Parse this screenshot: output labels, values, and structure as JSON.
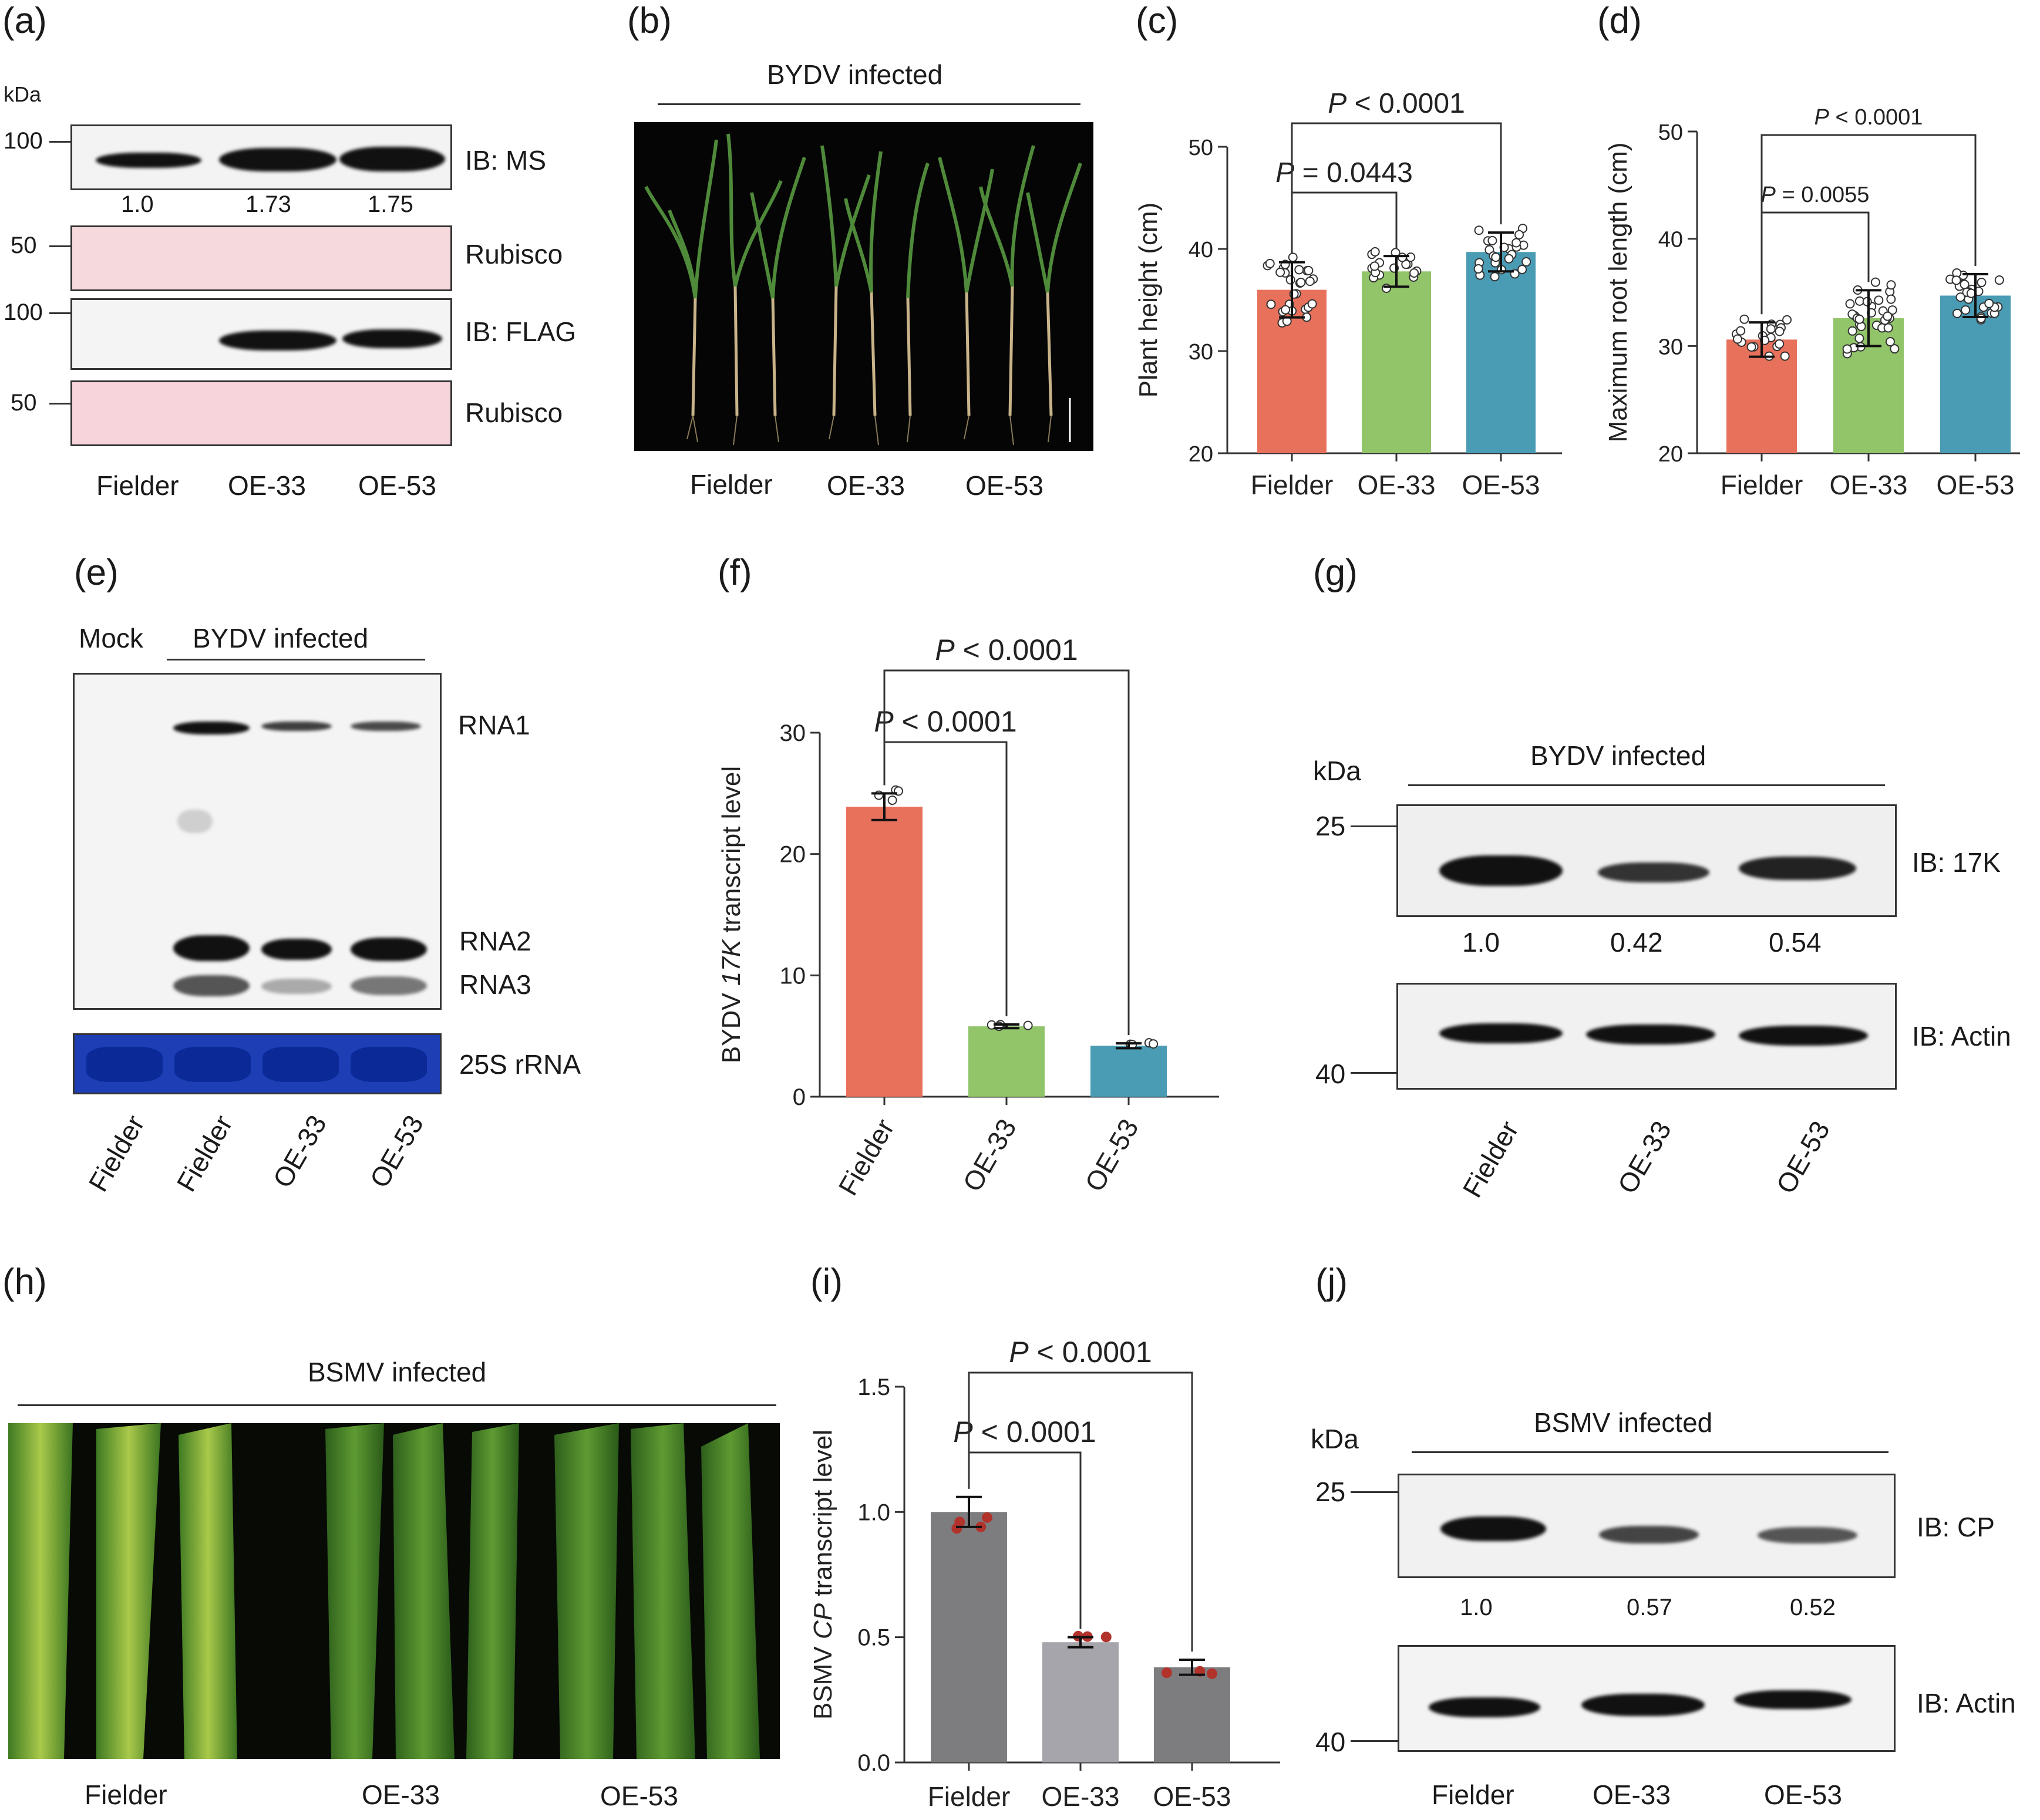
{
  "panels": {
    "a": {
      "label": "(a)",
      "unit": "kDa",
      "markers": [
        "100",
        "50",
        "100",
        "50"
      ],
      "blots": [
        "IB: MS",
        "Rubisco",
        "IB: FLAG",
        "Rubisco"
      ],
      "quant": [
        "1.0",
        "1.73",
        "1.75"
      ],
      "lanes": [
        "Fielder",
        "OE-33",
        "OE-53"
      ]
    },
    "b": {
      "label": "(b)",
      "header": "BYDV infected",
      "lanes": [
        "Fielder",
        "OE-33",
        "OE-53"
      ]
    },
    "e": {
      "label": "(e)",
      "mock": "Mock",
      "header": "BYDV infected",
      "bands": [
        "RNA1",
        "RNA2",
        "RNA3"
      ],
      "stain": "25S rRNA",
      "lanes": [
        "Fielder",
        "Fielder",
        "OE-33",
        "OE-53"
      ]
    },
    "g": {
      "label": "(g)",
      "unit": "kDa",
      "header": "BYDV infected",
      "markers": [
        "25",
        "40"
      ],
      "blots": [
        "IB: 17K",
        "IB: Actin"
      ],
      "quant": [
        "1.0",
        "0.42",
        "0.54"
      ],
      "lanes": [
        "Fielder",
        "OE-33",
        "OE-53"
      ]
    },
    "h": {
      "label": "(h)",
      "header": "BSMV infected",
      "lanes": [
        "Fielder",
        "OE-33",
        "OE-53"
      ]
    },
    "j": {
      "label": "(j)",
      "unit": "kDa",
      "header": "BSMV infected",
      "markers": [
        "25",
        "40"
      ],
      "blots": [
        "IB: CP",
        "IB: Actin"
      ],
      "quant": [
        "1.0",
        "0.57",
        "0.52"
      ],
      "lanes": [
        "Fielder",
        "OE-33",
        "OE-53"
      ]
    }
  },
  "chart_data": [
    {
      "panel": "(c)",
      "type": "bar",
      "categories": [
        "Fielder",
        "OE-33",
        "OE-53"
      ],
      "values": [
        36.0,
        37.8,
        39.7
      ],
      "errors": [
        2.7,
        1.5,
        1.9
      ],
      "ylabel": "Plant height (cm)",
      "ylim": [
        20,
        50
      ],
      "yticks": [
        "20",
        "30",
        "40",
        "50"
      ],
      "colors": [
        "#e8715c",
        "#92c46a",
        "#4a9bb4"
      ],
      "comparisons": [
        {
          "from": 0,
          "to": 1,
          "label": "= 0.0443"
        },
        {
          "from": 0,
          "to": 2,
          "label": "< 0.0001"
        }
      ]
    },
    {
      "panel": "(d)",
      "type": "bar",
      "categories": [
        "Fielder",
        "OE-33",
        "OE-53"
      ],
      "values": [
        30.6,
        32.6,
        34.7
      ],
      "errors": [
        1.6,
        2.6,
        2.0
      ],
      "ylabel": "Maximum root length (cm)",
      "ylim": [
        20,
        50
      ],
      "yticks": [
        "20",
        "30",
        "40",
        "50"
      ],
      "colors": [
        "#e8715c",
        "#92c46a",
        "#4a9bb4"
      ],
      "comparisons": [
        {
          "from": 0,
          "to": 1,
          "label": "= 0.0055"
        },
        {
          "from": 0,
          "to": 2,
          "label": "< 0.0001"
        }
      ]
    },
    {
      "panel": "(f)",
      "type": "bar",
      "categories": [
        "Fielder",
        "OE-33",
        "OE-53"
      ],
      "values": [
        23.9,
        5.8,
        4.2
      ],
      "errors": [
        1.1,
        0.15,
        0.2
      ],
      "ylabel_parts": [
        "BYDV ",
        "17K",
        " transcript level"
      ],
      "ylim": [
        0,
        30
      ],
      "yticks": [
        "0",
        "10",
        "20",
        "30"
      ],
      "colors": [
        "#e8715c",
        "#92c46a",
        "#4a9bb4"
      ],
      "comparisons": [
        {
          "from": 0,
          "to": 1,
          "label": "< 0.0001"
        },
        {
          "from": 0,
          "to": 2,
          "label": "< 0.0001"
        }
      ]
    },
    {
      "panel": "(i)",
      "type": "bar",
      "categories": [
        "Fielder",
        "OE-33",
        "OE-53"
      ],
      "values": [
        1.0,
        0.48,
        0.38
      ],
      "errors": [
        0.06,
        0.02,
        0.03
      ],
      "ylabel_parts": [
        "BSMV ",
        "CP",
        " transcript level"
      ],
      "ylim": [
        0,
        1.5
      ],
      "yticks": [
        "0.0",
        "0.5",
        "1.0",
        "1.5"
      ],
      "colors": [
        "#7d7d80",
        "#a6a5ab",
        "#7d7d80"
      ],
      "comparisons": [
        {
          "from": 0,
          "to": 1,
          "label": "< 0.0001"
        },
        {
          "from": 0,
          "to": 2,
          "label": "< 0.0001"
        }
      ]
    }
  ]
}
